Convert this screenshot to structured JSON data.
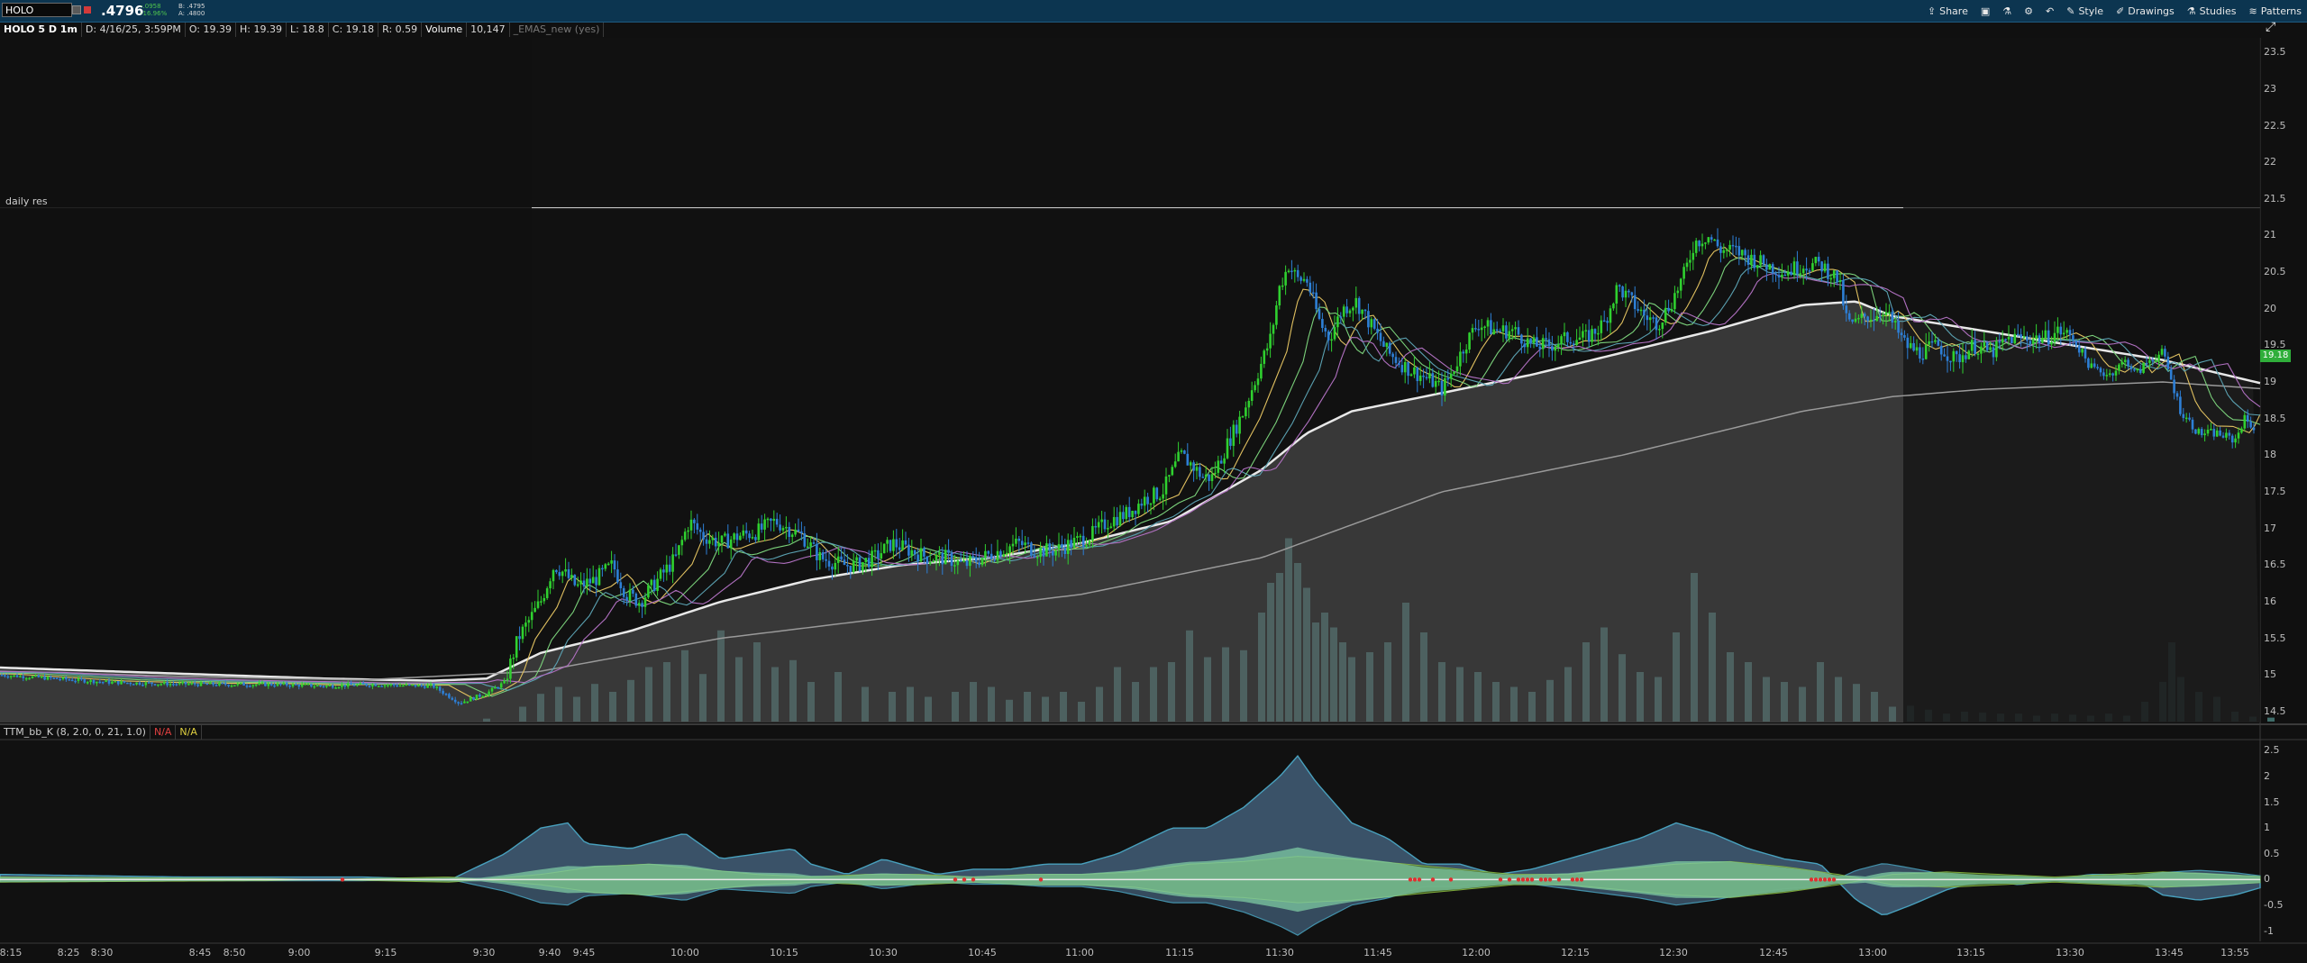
{
  "toolbar": {
    "symbol": "HOLO",
    "last_price": ".4796",
    "change": "-.0958",
    "change_pct": "-16.96%",
    "bid": "B: .4795",
    "ask": "A: .4800",
    "share": "Share",
    "style": "Style",
    "drawings": "Drawings",
    "studies": "Studies",
    "patterns": "Patterns"
  },
  "infobar": {
    "title": "HOLO 5 D 1m",
    "date": "D: 4/16/25, 3:59PM",
    "open": "O: 19.39",
    "high": "H: 19.39",
    "low": "L: 18.8",
    "close": "C: 19.18",
    "range": "R: 0.59",
    "volume_label": "Volume",
    "volume": "10,147",
    "study": "_EMAS_new (yes)"
  },
  "daily_res_label": "daily res",
  "current_price": "19.18",
  "indicator": {
    "name": "TTM_bb_K (8, 2.0, 0, 21, 1.0)",
    "na1": "N/A",
    "na2": "N/A"
  },
  "colors": {
    "up": "#2fd02f",
    "down": "#2d7fd6",
    "volume": "#4e8a86",
    "cloud": "#5a5a5a",
    "histogram": "#3f5a72",
    "momentum": "#7dc9a3",
    "squeeze_dot": "#e03030"
  },
  "chart_data": {
    "type": "candlestick",
    "price_axis": [
      "23.5",
      "23",
      "22.5",
      "22",
      "21.5",
      "21",
      "20.5",
      "20",
      "19.5",
      "19",
      "18.5",
      "18",
      "17.5",
      "17",
      "16.5",
      "16",
      "15.5",
      "15",
      "14.5"
    ],
    "indicator_axis": [
      "2.5",
      "2",
      "1.5",
      "1",
      "0.5",
      "0",
      "-0.5",
      "-1"
    ],
    "time_axis": [
      "8:15",
      "8:25",
      "8:30",
      "8:45",
      "8:50",
      "9:00",
      "9:15",
      "9:30",
      "9:40",
      "9:45",
      "10:00",
      "10:15",
      "10:30",
      "10:45",
      "11:00",
      "11:15",
      "11:30",
      "11:45",
      "12:00",
      "12:15",
      "12:30",
      "12:45",
      "13:00",
      "13:15",
      "13:30",
      "13:45",
      "13:55"
    ],
    "ylim": [
      14.35,
      23.7
    ],
    "price_path": [
      [
        0,
        15
      ],
      [
        60,
        14.95
      ],
      [
        120,
        14.9
      ],
      [
        180,
        14.88
      ],
      [
        240,
        14.87
      ],
      [
        300,
        14.87
      ],
      [
        360,
        14.85
      ],
      [
        420,
        14.87
      ],
      [
        465,
        14.85
      ],
      [
        480,
        14.85
      ],
      [
        510,
        14.62
      ],
      [
        540,
        14.75
      ],
      [
        560,
        14.9
      ],
      [
        575,
        15.5
      ],
      [
        590,
        15.8
      ],
      [
        600,
        16
      ],
      [
        615,
        16.5
      ],
      [
        625,
        16.4
      ],
      [
        640,
        16.2
      ],
      [
        660,
        16.3
      ],
      [
        680,
        16.5
      ],
      [
        695,
        16.1
      ],
      [
        710,
        16
      ],
      [
        730,
        16.3
      ],
      [
        750,
        16.6
      ],
      [
        765,
        17.1
      ],
      [
        780,
        16.9
      ],
      [
        800,
        16.8
      ],
      [
        820,
        16.9
      ],
      [
        840,
        16.95
      ],
      [
        860,
        17.1
      ],
      [
        875,
        17
      ],
      [
        890,
        16.9
      ],
      [
        910,
        16.6
      ],
      [
        935,
        16.5
      ],
      [
        950,
        16.5
      ],
      [
        970,
        16.6
      ],
      [
        990,
        16.8
      ],
      [
        1010,
        16.7
      ],
      [
        1030,
        16.6
      ],
      [
        1050,
        16.6
      ],
      [
        1070,
        16.5
      ],
      [
        1090,
        16.6
      ],
      [
        1110,
        16.7
      ],
      [
        1130,
        16.8
      ],
      [
        1150,
        16.7
      ],
      [
        1170,
        16.7
      ],
      [
        1190,
        16.8
      ],
      [
        1210,
        16.9
      ],
      [
        1230,
        17.1
      ],
      [
        1250,
        17.2
      ],
      [
        1270,
        17.4
      ],
      [
        1290,
        17.5
      ],
      [
        1310,
        18
      ],
      [
        1320,
        17.9
      ],
      [
        1335,
        17.7
      ],
      [
        1345,
        17.7
      ],
      [
        1360,
        18.1
      ],
      [
        1380,
        18.6
      ],
      [
        1395,
        19.1
      ],
      [
        1410,
        19.6
      ],
      [
        1420,
        20.3
      ],
      [
        1430,
        20.6
      ],
      [
        1440,
        20.4
      ],
      [
        1450,
        20.4
      ],
      [
        1465,
        19.8
      ],
      [
        1475,
        19.6
      ],
      [
        1490,
        20
      ],
      [
        1505,
        20.1
      ],
      [
        1520,
        19.8
      ],
      [
        1540,
        19.4
      ],
      [
        1560,
        19.2
      ],
      [
        1575,
        19.1
      ],
      [
        1590,
        19
      ],
      [
        1600,
        18.9
      ],
      [
        1610,
        19.1
      ],
      [
        1625,
        19.5
      ],
      [
        1640,
        19.8
      ],
      [
        1660,
        19.7
      ],
      [
        1680,
        19.7
      ],
      [
        1700,
        19.5
      ],
      [
        1720,
        19.5
      ],
      [
        1740,
        19.6
      ],
      [
        1760,
        19.6
      ],
      [
        1780,
        19.8
      ],
      [
        1795,
        20.3
      ],
      [
        1810,
        20.1
      ],
      [
        1825,
        19.9
      ],
      [
        1840,
        19.8
      ],
      [
        1855,
        20.1
      ],
      [
        1870,
        20.5
      ],
      [
        1880,
        20.9
      ],
      [
        1895,
        21
      ],
      [
        1910,
        20.8
      ],
      [
        1925,
        20.8
      ],
      [
        1940,
        20.7
      ],
      [
        1960,
        20.6
      ],
      [
        1980,
        20.5
      ],
      [
        2000,
        20.6
      ],
      [
        2020,
        20.6
      ],
      [
        2040,
        20.4
      ],
      [
        2050,
        19.8
      ],
      [
        2060,
        19.8
      ],
      [
        2070,
        19.9
      ],
      [
        2080,
        19.9
      ],
      [
        2090,
        20
      ],
      [
        2100,
        19.8
      ],
      [
        2115,
        19.5
      ],
      [
        2130,
        19.4
      ],
      [
        2150,
        19.5
      ],
      [
        2170,
        19.3
      ],
      [
        2190,
        19.5
      ],
      [
        2210,
        19.4
      ],
      [
        2230,
        19.6
      ],
      [
        2250,
        19.6
      ],
      [
        2270,
        19.6
      ],
      [
        2285,
        19.7
      ],
      [
        2300,
        19.6
      ],
      [
        2320,
        19.2
      ],
      [
        2340,
        19.1
      ],
      [
        2350,
        19.2
      ],
      [
        2360,
        19.3
      ],
      [
        2370,
        19.1
      ],
      [
        2385,
        19.3
      ],
      [
        2400,
        19.4
      ],
      [
        2420,
        18.6
      ],
      [
        2440,
        18.3
      ],
      [
        2460,
        18.3
      ],
      [
        2480,
        18.2
      ],
      [
        2490,
        18.5
      ],
      [
        2500,
        18.4
      ],
      [
        2510,
        18.1
      ],
      [
        2520,
        18.2
      ]
    ],
    "ema_band": [
      [
        0,
        15.1
      ],
      [
        120,
        15.05
      ],
      [
        240,
        15
      ],
      [
        360,
        14.95
      ],
      [
        480,
        14.92
      ],
      [
        540,
        14.95
      ],
      [
        600,
        15.3
      ],
      [
        700,
        15.6
      ],
      [
        800,
        16
      ],
      [
        900,
        16.3
      ],
      [
        1000,
        16.5
      ],
      [
        1100,
        16.6
      ],
      [
        1200,
        16.8
      ],
      [
        1300,
        17.1
      ],
      [
        1400,
        17.8
      ],
      [
        1450,
        18.3
      ],
      [
        1500,
        18.6
      ],
      [
        1600,
        18.85
      ],
      [
        1700,
        19.1
      ],
      [
        1800,
        19.4
      ],
      [
        1900,
        19.7
      ],
      [
        2000,
        20.05
      ],
      [
        2060,
        20.1
      ],
      [
        2100,
        19.9
      ],
      [
        2200,
        19.7
      ],
      [
        2300,
        19.5
      ],
      [
        2400,
        19.3
      ],
      [
        2520,
        18.95
      ]
    ],
    "sma_slow": [
      [
        0,
        15.05
      ],
      [
        200,
        14.98
      ],
      [
        400,
        14.93
      ],
      [
        600,
        15.05
      ],
      [
        800,
        15.5
      ],
      [
        1000,
        15.8
      ],
      [
        1200,
        16.1
      ],
      [
        1400,
        16.6
      ],
      [
        1600,
        17.5
      ],
      [
        1800,
        18
      ],
      [
        2000,
        18.6
      ],
      [
        2100,
        18.8
      ],
      [
        2200,
        18.9
      ],
      [
        2300,
        18.95
      ],
      [
        2400,
        19
      ],
      [
        2520,
        18.9
      ]
    ],
    "volume_bars": [
      [
        540,
        3
      ],
      [
        580,
        15
      ],
      [
        600,
        28
      ],
      [
        620,
        35
      ],
      [
        640,
        25
      ],
      [
        660,
        38
      ],
      [
        680,
        30
      ],
      [
        700,
        42
      ],
      [
        720,
        55
      ],
      [
        740,
        60
      ],
      [
        760,
        72
      ],
      [
        780,
        48
      ],
      [
        800,
        92
      ],
      [
        820,
        65
      ],
      [
        840,
        80
      ],
      [
        860,
        55
      ],
      [
        880,
        62
      ],
      [
        900,
        40
      ],
      [
        930,
        50
      ],
      [
        960,
        35
      ],
      [
        990,
        30
      ],
      [
        1010,
        35
      ],
      [
        1030,
        25
      ],
      [
        1060,
        30
      ],
      [
        1080,
        40
      ],
      [
        1100,
        35
      ],
      [
        1120,
        22
      ],
      [
        1140,
        30
      ],
      [
        1160,
        25
      ],
      [
        1180,
        30
      ],
      [
        1200,
        20
      ],
      [
        1220,
        35
      ],
      [
        1240,
        55
      ],
      [
        1260,
        40
      ],
      [
        1280,
        55
      ],
      [
        1300,
        60
      ],
      [
        1320,
        92
      ],
      [
        1340,
        65
      ],
      [
        1360,
        75
      ],
      [
        1380,
        72
      ],
      [
        1400,
        110
      ],
      [
        1410,
        140
      ],
      [
        1420,
        150
      ],
      [
        1430,
        185
      ],
      [
        1440,
        160
      ],
      [
        1450,
        135
      ],
      [
        1460,
        100
      ],
      [
        1470,
        110
      ],
      [
        1480,
        95
      ],
      [
        1490,
        80
      ],
      [
        1500,
        65
      ],
      [
        1520,
        70
      ],
      [
        1540,
        80
      ],
      [
        1560,
        120
      ],
      [
        1580,
        90
      ],
      [
        1600,
        60
      ],
      [
        1620,
        55
      ],
      [
        1640,
        50
      ],
      [
        1660,
        40
      ],
      [
        1680,
        35
      ],
      [
        1700,
        30
      ],
      [
        1720,
        42
      ],
      [
        1740,
        55
      ],
      [
        1760,
        80
      ],
      [
        1780,
        95
      ],
      [
        1800,
        68
      ],
      [
        1820,
        50
      ],
      [
        1840,
        45
      ],
      [
        1860,
        90
      ],
      [
        1880,
        150
      ],
      [
        1900,
        110
      ],
      [
        1920,
        70
      ],
      [
        1940,
        60
      ],
      [
        1960,
        45
      ],
      [
        1980,
        40
      ],
      [
        2000,
        35
      ],
      [
        2020,
        60
      ],
      [
        2040,
        45
      ],
      [
        2060,
        38
      ],
      [
        2080,
        30
      ],
      [
        2100,
        15
      ],
      [
        2120,
        16
      ],
      [
        2140,
        12
      ],
      [
        2160,
        8
      ],
      [
        2180,
        10
      ],
      [
        2200,
        9
      ],
      [
        2220,
        8
      ],
      [
        2240,
        8
      ],
      [
        2260,
        6
      ],
      [
        2280,
        8
      ],
      [
        2300,
        7
      ],
      [
        2320,
        6
      ],
      [
        2340,
        8
      ],
      [
        2360,
        6
      ],
      [
        2380,
        20
      ],
      [
        2400,
        40
      ],
      [
        2410,
        80
      ],
      [
        2420,
        45
      ],
      [
        2440,
        30
      ],
      [
        2460,
        25
      ],
      [
        2480,
        10
      ],
      [
        2500,
        5
      ],
      [
        2520,
        4
      ]
    ],
    "histogram": [
      [
        0,
        0.1
      ],
      [
        200,
        0.05
      ],
      [
        400,
        0.05
      ],
      [
        500,
        0
      ],
      [
        560,
        0.5
      ],
      [
        600,
        1
      ],
      [
        630,
        1.1
      ],
      [
        650,
        0.7
      ],
      [
        700,
        0.6
      ],
      [
        740,
        0.8
      ],
      [
        760,
        0.9
      ],
      [
        800,
        0.4
      ],
      [
        840,
        0.5
      ],
      [
        880,
        0.6
      ],
      [
        900,
        0.3
      ],
      [
        940,
        0.1
      ],
      [
        980,
        0.4
      ],
      [
        1000,
        0.3
      ],
      [
        1040,
        0.1
      ],
      [
        1080,
        0.2
      ],
      [
        1120,
        0.2
      ],
      [
        1160,
        0.3
      ],
      [
        1200,
        0.3
      ],
      [
        1240,
        0.5
      ],
      [
        1300,
        1
      ],
      [
        1340,
        1
      ],
      [
        1380,
        1.4
      ],
      [
        1420,
        2
      ],
      [
        1440,
        2.4
      ],
      [
        1460,
        1.9
      ],
      [
        1500,
        1.1
      ],
      [
        1540,
        0.8
      ],
      [
        1580,
        0.3
      ],
      [
        1620,
        0.3
      ],
      [
        1660,
        0.1
      ],
      [
        1700,
        0.2
      ],
      [
        1740,
        0.4
      ],
      [
        1780,
        0.6
      ],
      [
        1820,
        0.8
      ],
      [
        1860,
        1.1
      ],
      [
        1900,
        0.9
      ],
      [
        1940,
        0.6
      ],
      [
        1980,
        0.4
      ],
      [
        2020,
        0.3
      ],
      [
        2060,
        -0.4
      ],
      [
        2090,
        -0.7
      ],
      [
        2120,
        -0.5
      ],
      [
        2160,
        -0.2
      ],
      [
        2200,
        0
      ],
      [
        2240,
        -0.1
      ],
      [
        2280,
        0
      ],
      [
        2320,
        0.1
      ],
      [
        2360,
        0.1
      ],
      [
        2400,
        -0.3
      ],
      [
        2440,
        -0.4
      ],
      [
        2480,
        -0.3
      ],
      [
        2520,
        -0.1
      ]
    ],
    "momentum": [
      [
        0,
        0.05
      ],
      [
        300,
        0.02
      ],
      [
        500,
        -0.05
      ],
      [
        600,
        0.1
      ],
      [
        660,
        0.25
      ],
      [
        720,
        0.3
      ],
      [
        780,
        0.2
      ],
      [
        840,
        0.1
      ],
      [
        900,
        0.05
      ],
      [
        960,
        0.1
      ],
      [
        1020,
        0.1
      ],
      [
        1080,
        0.05
      ],
      [
        1140,
        0.1
      ],
      [
        1200,
        0.1
      ],
      [
        1260,
        0.15
      ],
      [
        1320,
        0.3
      ],
      [
        1380,
        0.35
      ],
      [
        1440,
        0.45
      ],
      [
        1500,
        0.4
      ],
      [
        1560,
        0.3
      ],
      [
        1620,
        0.2
      ],
      [
        1680,
        0.1
      ],
      [
        1740,
        0.1
      ],
      [
        1800,
        0.2
      ],
      [
        1860,
        0.3
      ],
      [
        1920,
        0.35
      ],
      [
        1980,
        0.25
      ],
      [
        2040,
        0.1
      ],
      [
        2100,
        -0.1
      ],
      [
        2160,
        -0.15
      ],
      [
        2220,
        -0.1
      ],
      [
        2280,
        -0.05
      ],
      [
        2340,
        -0.1
      ],
      [
        2400,
        -0.15
      ],
      [
        2460,
        -0.1
      ],
      [
        2520,
        -0.05
      ]
    ],
    "squeeze_dots": [
      380,
      1060,
      1070,
      1080,
      1155,
      1565,
      1570,
      1575,
      1590,
      1610,
      1665,
      1675,
      1685,
      1690,
      1695,
      1700,
      1710,
      1715,
      1720,
      1730,
      1745,
      1750,
      1755,
      2010,
      2015,
      2020,
      2025,
      2030,
      2035
    ]
  }
}
